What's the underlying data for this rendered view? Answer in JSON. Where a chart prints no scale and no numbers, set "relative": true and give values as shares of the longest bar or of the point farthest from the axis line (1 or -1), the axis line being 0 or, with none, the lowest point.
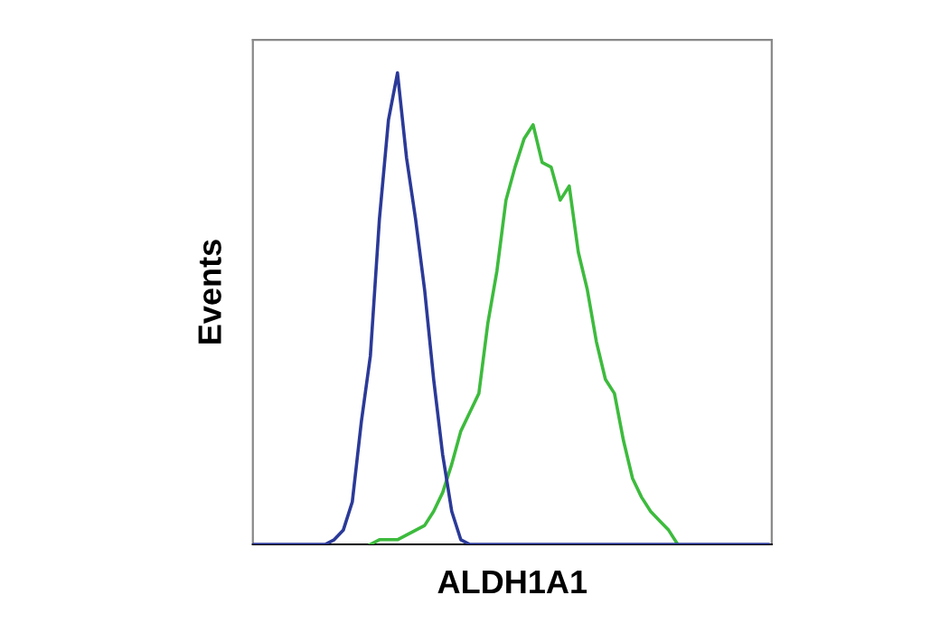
{
  "chart_data": {
    "type": "line",
    "relative": true,
    "xlabel": "ALDH1A1",
    "ylabel": "Events",
    "legend": false,
    "marker": "none",
    "line_style": "solid",
    "categories": [
      null,
      null,
      null,
      null,
      null,
      null,
      null,
      null,
      null,
      null,
      null,
      null,
      null,
      null,
      null,
      null,
      null,
      null,
      null,
      null,
      null,
      null,
      null,
      null,
      null,
      null,
      null,
      null,
      null,
      null,
      null,
      null,
      null,
      null,
      null,
      null,
      null,
      null,
      null,
      null,
      null,
      null,
      null,
      null,
      null,
      null,
      null,
      null,
      null,
      null,
      null,
      null,
      null,
      null,
      null,
      null,
      null,
      null
    ],
    "series": [
      {
        "color": "#2b3a98",
        "values": [
          0,
          0,
          0,
          0,
          0,
          0,
          0,
          0,
          0,
          0.01,
          0.03,
          0.09,
          0.26,
          0.4,
          0.69,
          0.9,
          1.0,
          0.82,
          0.69,
          0.54,
          0.35,
          0.19,
          0.07,
          0.01,
          0,
          0,
          0,
          0,
          0,
          0,
          0,
          0,
          0,
          0,
          0,
          0,
          0,
          0,
          0,
          0,
          0,
          0,
          0,
          0,
          0,
          0,
          0,
          0,
          0,
          0,
          0,
          0,
          0,
          0,
          0,
          0,
          0,
          0
        ]
      },
      {
        "color": "#3dbb3d",
        "values": [
          null,
          null,
          null,
          null,
          null,
          null,
          null,
          null,
          null,
          null,
          null,
          null,
          null,
          0,
          0.01,
          0.01,
          0.01,
          0.02,
          0.03,
          0.04,
          0.07,
          0.11,
          0.17,
          0.24,
          0.28,
          0.32,
          0.47,
          0.58,
          0.73,
          0.8,
          0.86,
          0.89,
          0.81,
          0.8,
          0.73,
          0.76,
          0.62,
          0.54,
          0.43,
          0.35,
          0.32,
          0.22,
          0.14,
          0.1,
          0.07,
          0.05,
          0.03,
          0,
          null,
          null,
          null,
          null,
          null,
          null,
          null,
          null,
          null,
          null
        ]
      }
    ]
  }
}
